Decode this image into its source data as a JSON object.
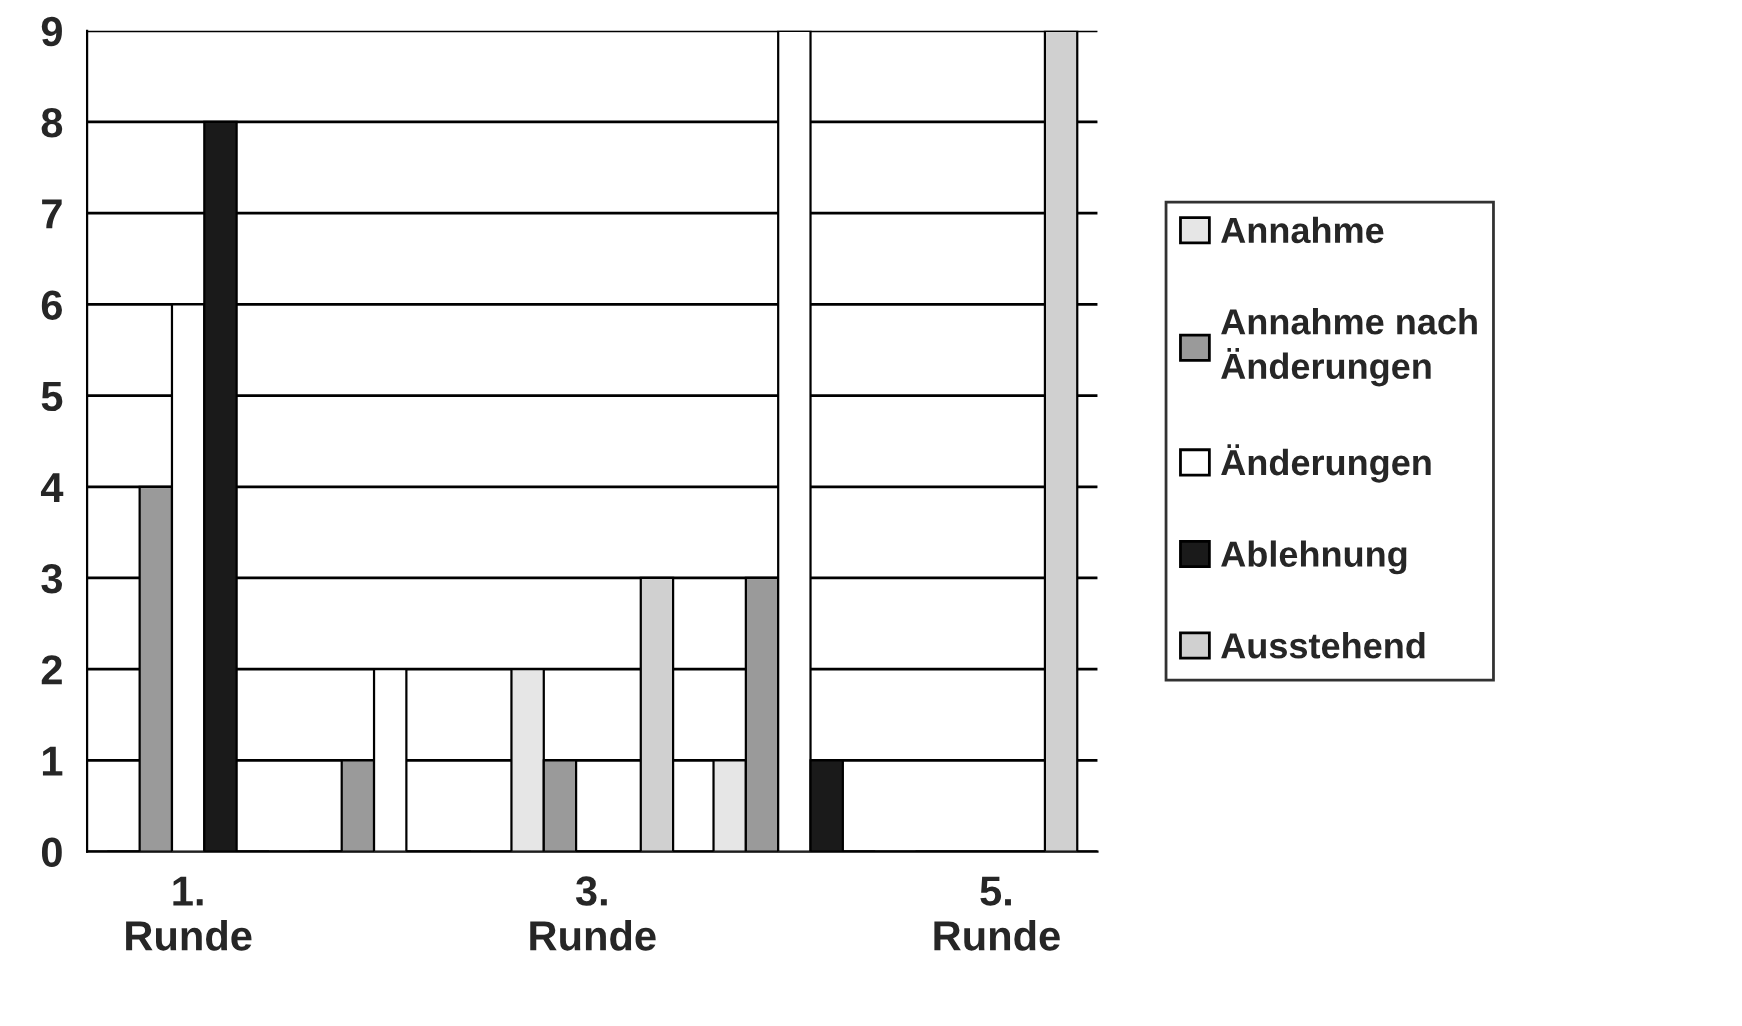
{
  "chart_data": {
    "type": "bar",
    "categories": [
      "1.\nRunde",
      null,
      "3.\nRunde",
      null,
      "5.\nRunde"
    ],
    "series": [
      {
        "name": "Annahme",
        "color": "#e6e6e6",
        "values": [
          0,
          0,
          2,
          1,
          0
        ]
      },
      {
        "name": "Annahme nach\nÄnderungen",
        "color": "#9a9a9a",
        "values": [
          4,
          1,
          1,
          3,
          0
        ]
      },
      {
        "name": "Änderungen",
        "color": "#ffffff",
        "values": [
          6,
          2,
          0,
          9,
          0
        ]
      },
      {
        "name": "Ablehnung",
        "color": "#1a1a1a",
        "values": [
          8,
          0,
          0,
          1,
          0
        ]
      },
      {
        "name": "Ausstehend",
        "color": "#d0d0d0",
        "values": [
          0,
          0,
          3,
          0,
          9
        ]
      }
    ],
    "ylim": [
      0,
      9
    ],
    "yticks": [
      0,
      1,
      2,
      3,
      4,
      5,
      6,
      7,
      8,
      9
    ],
    "grid": "y",
    "legend": "right"
  }
}
